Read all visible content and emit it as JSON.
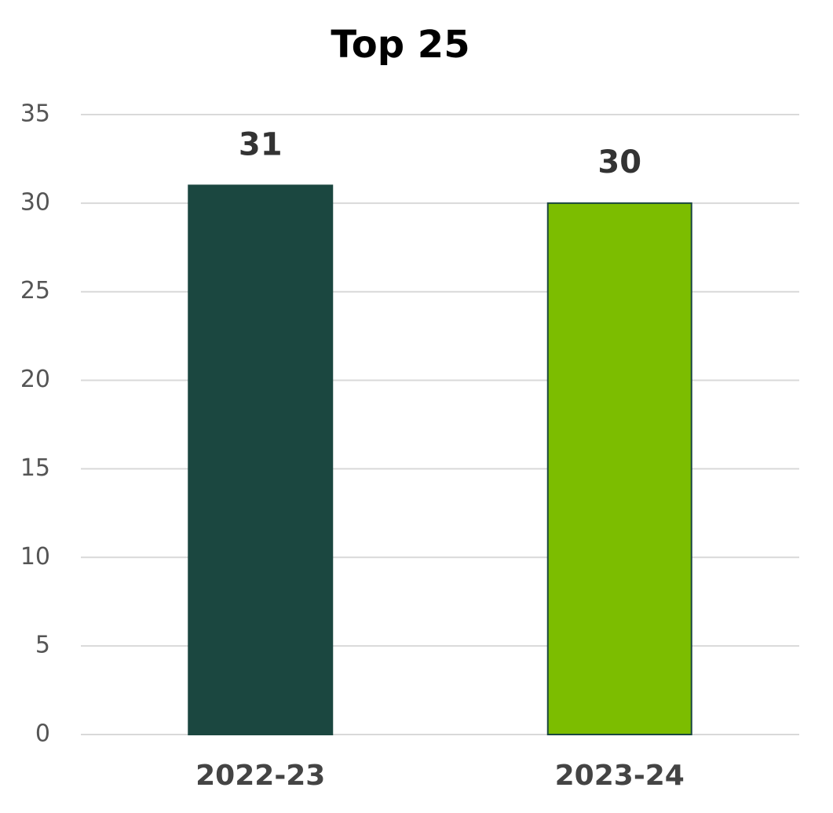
{
  "chart_data": {
    "type": "bar",
    "title": "Top 25",
    "categories": [
      "2022-23",
      "2023-24"
    ],
    "values": [
      31,
      30
    ],
    "colors": [
      "#1b4740",
      "#7cbd00"
    ],
    "ylim": [
      0,
      35
    ],
    "yticks": [
      0,
      5,
      10,
      15,
      20,
      25,
      30,
      35
    ],
    "grid": true
  }
}
